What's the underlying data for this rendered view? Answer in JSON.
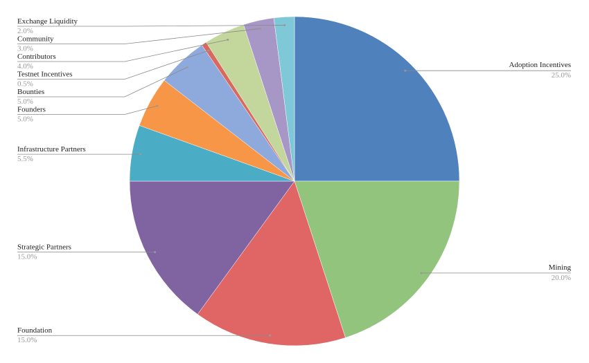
{
  "chart_data": {
    "type": "pie",
    "categories": [
      "Adoption Incentives",
      "Mining",
      "Foundation",
      "Strategic Partners",
      "Infrastructure Partners",
      "Founders",
      "Bounties",
      "Testnet Incentives",
      "Contributors",
      "Community",
      "Exchange Liquidity"
    ],
    "values": [
      25,
      20,
      15,
      15,
      5.5,
      5,
      5,
      0.5,
      4,
      3,
      2
    ],
    "value_labels": [
      "25.0%",
      "20.0%",
      "15.0%",
      "15.0%",
      "5.5%",
      "5.0%",
      "5.0%",
      "0.5%",
      "4.0%",
      "3.0%",
      "2.0%"
    ],
    "colors": [
      "#4f81bd",
      "#93c47d",
      "#e06666",
      "#8064a2",
      "#4bacc6",
      "#f79646",
      "#8eaadc",
      "#d9695f",
      "#c3d69b",
      "#a797c6",
      "#7fc8d8"
    ]
  }
}
